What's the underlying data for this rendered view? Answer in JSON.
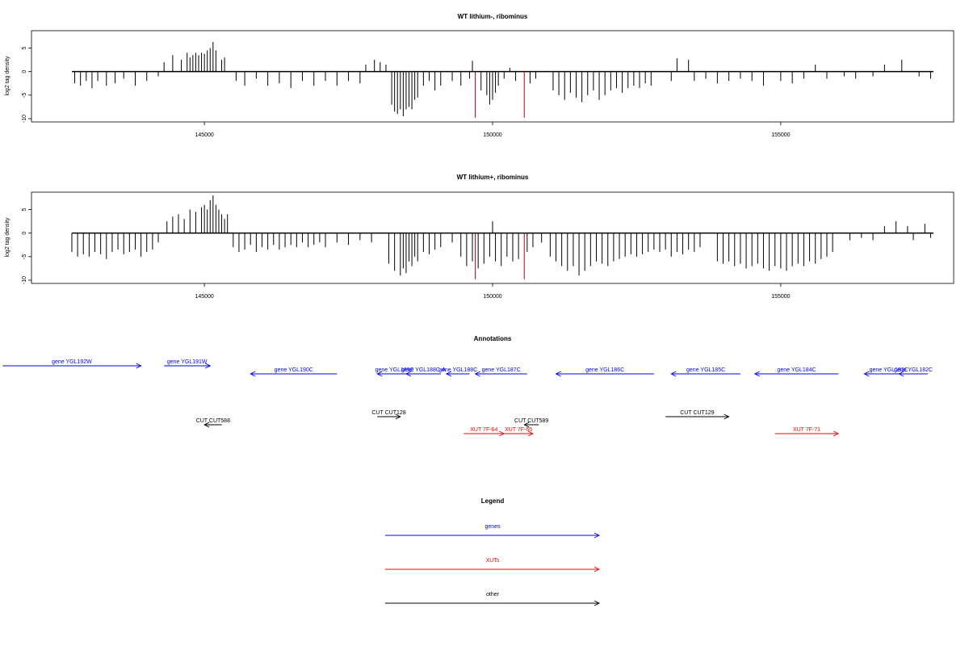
{
  "chart_data": [
    {
      "type": "bar",
      "title": "WT lithium-, ribominus",
      "ylabel": "log2 tag density",
      "xlim": [
        142000,
        158000
      ],
      "ylim": [
        -10,
        8
      ],
      "xticks": [
        145000,
        150000,
        155000
      ],
      "xtick_labels": [
        "145000",
        "150000",
        "155000"
      ],
      "yticks": [
        -10,
        -5,
        0,
        5
      ],
      "ytick_labels": [
        "-10",
        "-5",
        "0",
        "5"
      ],
      "red_lines_x": [
        149700,
        150550
      ],
      "bars": [
        [
          142750,
          -2.5
        ],
        [
          142850,
          -3
        ],
        [
          142950,
          -2
        ],
        [
          143050,
          -3.5
        ],
        [
          143150,
          -2
        ],
        [
          143300,
          -3
        ],
        [
          143450,
          -2.5
        ],
        [
          143600,
          -1.5
        ],
        [
          143800,
          -3
        ],
        [
          144000,
          -2
        ],
        [
          144200,
          -1
        ],
        [
          144300,
          2
        ],
        [
          144450,
          3.5
        ],
        [
          144600,
          2.5
        ],
        [
          144700,
          4
        ],
        [
          144750,
          3
        ],
        [
          144800,
          3.5
        ],
        [
          144850,
          4
        ],
        [
          144900,
          3.5
        ],
        [
          144950,
          4
        ],
        [
          145000,
          3.8
        ],
        [
          145050,
          4.5
        ],
        [
          145100,
          5
        ],
        [
          145150,
          6.3
        ],
        [
          145200,
          4.5
        ],
        [
          145300,
          2.5
        ],
        [
          145350,
          3
        ],
        [
          145550,
          -2
        ],
        [
          145700,
          -3
        ],
        [
          145900,
          -1.5
        ],
        [
          146100,
          -3
        ],
        [
          146300,
          -2.5
        ],
        [
          146500,
          -3.5
        ],
        [
          146700,
          -2
        ],
        [
          146900,
          -3
        ],
        [
          147100,
          -2
        ],
        [
          147300,
          -3
        ],
        [
          147500,
          -2
        ],
        [
          147700,
          -2.5
        ],
        [
          147800,
          1.5
        ],
        [
          147950,
          2.5
        ],
        [
          148050,
          2
        ],
        [
          148150,
          1.5
        ],
        [
          148250,
          -7
        ],
        [
          148300,
          -8.5
        ],
        [
          148350,
          -9
        ],
        [
          148400,
          -8
        ],
        [
          148450,
          -9.5
        ],
        [
          148500,
          -8
        ],
        [
          148550,
          -7.5
        ],
        [
          148600,
          -8
        ],
        [
          148650,
          -6
        ],
        [
          148700,
          -5.5
        ],
        [
          148800,
          -3
        ],
        [
          148900,
          -2
        ],
        [
          149000,
          -4
        ],
        [
          149100,
          -3
        ],
        [
          149300,
          -2
        ],
        [
          149450,
          -3
        ],
        [
          149600,
          -1.5
        ],
        [
          149650,
          2.3
        ],
        [
          149800,
          -4
        ],
        [
          149900,
          -5
        ],
        [
          149950,
          -7
        ],
        [
          150000,
          -6
        ],
        [
          150050,
          -4.5
        ],
        [
          150100,
          -3
        ],
        [
          150200,
          -1.5
        ],
        [
          150300,
          0.8
        ],
        [
          150400,
          -2
        ],
        [
          150650,
          -2.5
        ],
        [
          150750,
          -1.5
        ],
        [
          151050,
          -4
        ],
        [
          151150,
          -5
        ],
        [
          151250,
          -6
        ],
        [
          151350,
          -4.5
        ],
        [
          151450,
          -5.5
        ],
        [
          151550,
          -6.5
        ],
        [
          151650,
          -5
        ],
        [
          151750,
          -4
        ],
        [
          151850,
          -6
        ],
        [
          151950,
          -5
        ],
        [
          152050,
          -4
        ],
        [
          152150,
          -3.5
        ],
        [
          152250,
          -4.5
        ],
        [
          152350,
          -3.5
        ],
        [
          152450,
          -3
        ],
        [
          152550,
          -3.5
        ],
        [
          152650,
          -2.5
        ],
        [
          152750,
          -3
        ],
        [
          153100,
          -2
        ],
        [
          153200,
          2.8
        ],
        [
          153400,
          2.5
        ],
        [
          153500,
          -2
        ],
        [
          153700,
          -1.5
        ],
        [
          153900,
          -2.5
        ],
        [
          154100,
          -2
        ],
        [
          154300,
          -1.5
        ],
        [
          154500,
          -2
        ],
        [
          154700,
          -3
        ],
        [
          155000,
          -2
        ],
        [
          155200,
          -2.5
        ],
        [
          155400,
          -1.5
        ],
        [
          155600,
          1.5
        ],
        [
          155800,
          -1.5
        ],
        [
          156100,
          -1
        ],
        [
          156300,
          -1.5
        ],
        [
          156600,
          -1
        ],
        [
          156800,
          1.5
        ],
        [
          157100,
          2.5
        ],
        [
          157400,
          -1
        ],
        [
          157600,
          -1.5
        ]
      ]
    },
    {
      "type": "bar",
      "title": "WT lithium+, ribominus",
      "ylabel": "log2 tag density",
      "xlim": [
        142000,
        158000
      ],
      "ylim": [
        -10,
        8
      ],
      "xticks": [
        145000,
        150000,
        155000
      ],
      "xtick_labels": [
        "145000",
        "150000",
        "155000"
      ],
      "yticks": [
        -10,
        -5,
        0,
        5
      ],
      "ytick_labels": [
        "-10",
        "-5",
        "0",
        "5"
      ],
      "red_lines_x": [
        149700,
        150550
      ],
      "bars": [
        [
          142700,
          -4
        ],
        [
          142800,
          -5
        ],
        [
          142900,
          -4.5
        ],
        [
          143000,
          -5
        ],
        [
          143100,
          -4
        ],
        [
          143200,
          -4.5
        ],
        [
          143300,
          -5.5
        ],
        [
          143400,
          -4
        ],
        [
          143500,
          -3.5
        ],
        [
          143600,
          -4.5
        ],
        [
          143700,
          -4
        ],
        [
          143800,
          -3.5
        ],
        [
          143900,
          -5
        ],
        [
          144000,
          -4
        ],
        [
          144100,
          -3.5
        ],
        [
          144200,
          -2
        ],
        [
          144350,
          2.5
        ],
        [
          144450,
          3.5
        ],
        [
          144550,
          4
        ],
        [
          144650,
          3
        ],
        [
          144750,
          5
        ],
        [
          144850,
          4.5
        ],
        [
          144950,
          5.5
        ],
        [
          145000,
          6
        ],
        [
          145050,
          5
        ],
        [
          145100,
          7
        ],
        [
          145150,
          8
        ],
        [
          145200,
          6
        ],
        [
          145250,
          5
        ],
        [
          145300,
          4
        ],
        [
          145350,
          3
        ],
        [
          145400,
          4
        ],
        [
          145500,
          -3
        ],
        [
          145600,
          -4
        ],
        [
          145700,
          -3.5
        ],
        [
          145800,
          -2.5
        ],
        [
          145900,
          -4
        ],
        [
          146000,
          -3
        ],
        [
          146100,
          -3.5
        ],
        [
          146200,
          -2.5
        ],
        [
          146300,
          -3.5
        ],
        [
          146400,
          -3
        ],
        [
          146500,
          -2.5
        ],
        [
          146600,
          -3
        ],
        [
          146700,
          -2
        ],
        [
          146800,
          -3
        ],
        [
          146900,
          -2.5
        ],
        [
          147000,
          -2
        ],
        [
          147100,
          -3
        ],
        [
          147300,
          -2
        ],
        [
          147500,
          -2.5
        ],
        [
          147700,
          -1.5
        ],
        [
          147900,
          -2
        ],
        [
          148200,
          -6.5
        ],
        [
          148300,
          -8
        ],
        [
          148400,
          -9
        ],
        [
          148450,
          -7.5
        ],
        [
          148500,
          -8.5
        ],
        [
          148550,
          -6
        ],
        [
          148600,
          -7
        ],
        [
          148650,
          -5
        ],
        [
          148700,
          -6
        ],
        [
          148800,
          -4
        ],
        [
          148900,
          -4.5
        ],
        [
          149000,
          -3.5
        ],
        [
          149100,
          -3
        ],
        [
          149300,
          -2
        ],
        [
          149450,
          -5
        ],
        [
          149550,
          -7
        ],
        [
          149650,
          -6
        ],
        [
          149750,
          -7.5
        ],
        [
          149850,
          -6.5
        ],
        [
          149950,
          -5
        ],
        [
          150000,
          2.5
        ],
        [
          150050,
          -6
        ],
        [
          150150,
          -7
        ],
        [
          150250,
          -5
        ],
        [
          150350,
          -6
        ],
        [
          150450,
          -5.5
        ],
        [
          150600,
          -4
        ],
        [
          150700,
          -3
        ],
        [
          150850,
          -2
        ],
        [
          151000,
          -5
        ],
        [
          151100,
          -6
        ],
        [
          151200,
          -7
        ],
        [
          151300,
          -8
        ],
        [
          151400,
          -7
        ],
        [
          151500,
          -9
        ],
        [
          151600,
          -8
        ],
        [
          151700,
          -7
        ],
        [
          151800,
          -6
        ],
        [
          151900,
          -6.5
        ],
        [
          152000,
          -7
        ],
        [
          152100,
          -6
        ],
        [
          152200,
          -5.5
        ],
        [
          152300,
          -5
        ],
        [
          152400,
          -4.5
        ],
        [
          152500,
          -5
        ],
        [
          152600,
          -4.5
        ],
        [
          152700,
          -4
        ],
        [
          152800,
          -3.5
        ],
        [
          152900,
          -4
        ],
        [
          153000,
          -3.5
        ],
        [
          153100,
          -5
        ],
        [
          153200,
          -4
        ],
        [
          153300,
          -4.5
        ],
        [
          153400,
          -3.5
        ],
        [
          153500,
          -4
        ],
        [
          153600,
          -3
        ],
        [
          153900,
          -6
        ],
        [
          154000,
          -6.5
        ],
        [
          154100,
          -6
        ],
        [
          154200,
          -7
        ],
        [
          154300,
          -6.5
        ],
        [
          154400,
          -7.5
        ],
        [
          154500,
          -7
        ],
        [
          154600,
          -6.5
        ],
        [
          154700,
          -7.5
        ],
        [
          154800,
          -8
        ],
        [
          154900,
          -7
        ],
        [
          155000,
          -7.5
        ],
        [
          155100,
          -8
        ],
        [
          155200,
          -7
        ],
        [
          155300,
          -6.5
        ],
        [
          155400,
          -7
        ],
        [
          155500,
          -6
        ],
        [
          155600,
          -6.5
        ],
        [
          155700,
          -5.5
        ],
        [
          155800,
          -5
        ],
        [
          155900,
          -4
        ],
        [
          156200,
          -1.5
        ],
        [
          156400,
          -1
        ],
        [
          156600,
          -1.5
        ],
        [
          156800,
          1.5
        ],
        [
          157000,
          2.5
        ],
        [
          157200,
          1.5
        ],
        [
          157300,
          -1.5
        ],
        [
          157500,
          2
        ],
        [
          157600,
          -1
        ]
      ]
    }
  ],
  "annotations": {
    "title": "Annotations",
    "features": [
      {
        "label": "gene YGL192W",
        "start": 141500,
        "end": 143900,
        "dir": 1,
        "row": 0,
        "color": "#0000ff"
      },
      {
        "label": "gene YGL191W",
        "start": 144300,
        "end": 145100,
        "dir": 1,
        "row": 0,
        "color": "#0000ff"
      },
      {
        "label": "gene YGL190C",
        "start": 145800,
        "end": 147300,
        "dir": -1,
        "row": 1,
        "color": "#0000ff"
      },
      {
        "label": "gene YGL189C",
        "start": 148000,
        "end": 148600,
        "dir": -1,
        "row": 1,
        "color": "#0000ff"
      },
      {
        "label": "gene YGL188C-A",
        "start": 148500,
        "end": 149100,
        "dir": -1,
        "row": 1,
        "color": "#0000ff"
      },
      {
        "label": "gene YGL188C",
        "start": 149200,
        "end": 149600,
        "dir": -1,
        "row": 1,
        "color": "#0000ff"
      },
      {
        "label": "gene YGL187C",
        "start": 149700,
        "end": 150600,
        "dir": -1,
        "row": 1,
        "color": "#0000ff"
      },
      {
        "label": "gene YGL186C",
        "start": 151100,
        "end": 152800,
        "dir": -1,
        "row": 1,
        "color": "#0000ff"
      },
      {
        "label": "gene YGL185C",
        "start": 153100,
        "end": 154300,
        "dir": -1,
        "row": 1,
        "color": "#0000ff"
      },
      {
        "label": "gene YGL184C",
        "start": 154550,
        "end": 156000,
        "dir": -1,
        "row": 1,
        "color": "#0000ff"
      },
      {
        "label": "gene YGL183C",
        "start": 156450,
        "end": 157300,
        "dir": -1,
        "row": 1,
        "color": "#0000ff"
      },
      {
        "label": "gene YGL182C",
        "start": 157050,
        "end": 157550,
        "dir": -1,
        "row": 1,
        "color": "#0000ff"
      },
      {
        "label": "CUT CUT588",
        "start": 145000,
        "end": 145300,
        "dir": -1,
        "row": 3,
        "color": "#000000"
      },
      {
        "label": "CUT CUT128",
        "start": 148000,
        "end": 148400,
        "dir": 1,
        "row": 2,
        "color": "#000000"
      },
      {
        "label": "CUT CUT589",
        "start": 150550,
        "end": 150800,
        "dir": -1,
        "row": 3,
        "color": "#000000"
      },
      {
        "label": "CUT CUT129",
        "start": 153000,
        "end": 154100,
        "dir": 1,
        "row": 2,
        "color": "#000000"
      },
      {
        "label": "XUT 7F-64",
        "start": 149500,
        "end": 150200,
        "dir": 1,
        "row": 4,
        "color": "#ff0000"
      },
      {
        "label": "XUT 7F-65",
        "start": 150200,
        "end": 150700,
        "dir": 1,
        "row": 4,
        "color": "#ff0000"
      },
      {
        "label": "XUT 7F-71",
        "start": 154900,
        "end": 156000,
        "dir": 1,
        "row": 4,
        "color": "#ff0000"
      }
    ]
  },
  "legend": {
    "title": "Legend",
    "items": [
      {
        "label": "genes",
        "color": "#0000ff"
      },
      {
        "label": "XUTs",
        "color": "#ff0000"
      },
      {
        "label": "other",
        "color": "#000000"
      }
    ]
  }
}
